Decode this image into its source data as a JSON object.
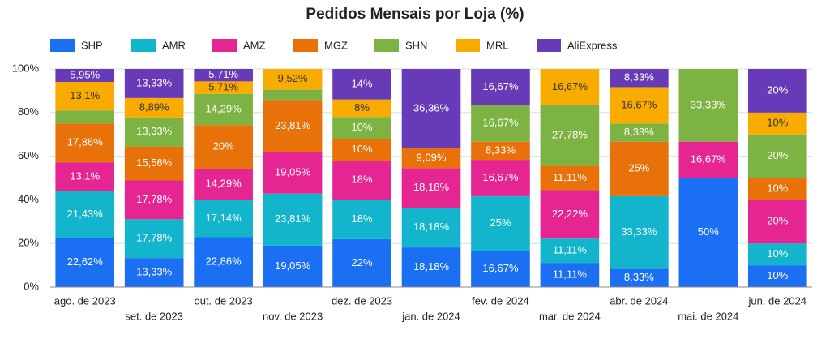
{
  "chart_data": {
    "type": "stacked_bar_100",
    "title": "Pedidos Mensais por Loja (%)",
    "categories": [
      "ago. de 2023",
      "set. de 2023",
      "out. de 2023",
      "nov. de 2023",
      "dez. de 2023",
      "jan. de 2024",
      "fev. de 2024",
      "mar. de 2024",
      "abr. de 2024",
      "mai. de 2024",
      "jun. de 2024"
    ],
    "series": [
      {
        "name": "SHP",
        "color": "#1a6ff2",
        "values": [
          22.62,
          13.33,
          22.86,
          19.05,
          22,
          18.18,
          16.67,
          11.11,
          8.33,
          50,
          10
        ],
        "value_labels": [
          "22,62%",
          "13,33%",
          "22,86%",
          "19,05%",
          "22%",
          "18,18%",
          "16,67%",
          "11,11%",
          "8,33%",
          "50%",
          "10%"
        ]
      },
      {
        "name": "AMR",
        "color": "#12b5cb",
        "values": [
          21.43,
          17.78,
          17.14,
          23.81,
          18,
          18.18,
          25,
          11.11,
          33.33,
          0,
          10
        ],
        "value_labels": [
          "21,43%",
          "17,78%",
          "17,14%",
          "23,81%",
          "18%",
          "18,18%",
          "25%",
          "11,11%",
          "33,33%",
          null,
          "10%"
        ]
      },
      {
        "name": "AMZ",
        "color": "#e52592",
        "values": [
          13.1,
          17.78,
          14.29,
          19.05,
          18,
          18.18,
          16.67,
          22.22,
          0,
          16.67,
          20
        ],
        "value_labels": [
          "13,1%",
          "17,78%",
          "14,29%",
          "19,05%",
          "18%",
          "18,18%",
          "16,67%",
          "22,22%",
          null,
          "16,67%",
          "20%"
        ]
      },
      {
        "name": "MGZ",
        "color": "#e8710a",
        "values": [
          17.86,
          15.56,
          20,
          23.81,
          10,
          9.09,
          8.33,
          11.11,
          25,
          0,
          10
        ],
        "value_labels": [
          "17,86%",
          "15,56%",
          "20%",
          "23,81%",
          "10%",
          "9,09%",
          "8,33%",
          "11,11%",
          "25%",
          null,
          "10%"
        ]
      },
      {
        "name": "SHN",
        "color": "#7cb342",
        "values": [
          5.95,
          13.33,
          14.29,
          4.76,
          10,
          0,
          16.67,
          27.78,
          8.33,
          33.33,
          20
        ],
        "value_labels": [
          null,
          "13,33%",
          "14,29%",
          null,
          "10%",
          null,
          "16,67%",
          "27,78%",
          "8,33%",
          "33,33%",
          "20%"
        ]
      },
      {
        "name": "MRL",
        "color": "#f9ab00",
        "values": [
          13.1,
          8.89,
          5.71,
          9.52,
          8,
          0,
          0,
          16.67,
          16.67,
          0,
          10
        ],
        "value_labels": [
          "13,1%",
          "8,89%",
          "5,71%",
          "9,52%",
          "8%",
          null,
          null,
          "16,67%",
          "16,67%",
          null,
          "10%"
        ]
      },
      {
        "name": "AliExpress",
        "color": "#673ab7",
        "values": [
          5.95,
          13.33,
          5.71,
          0,
          14,
          36.36,
          16.67,
          0,
          8.33,
          0,
          20
        ],
        "value_labels": [
          "5,95%",
          "13,33%",
          "5,71%",
          null,
          "14%",
          "36,36%",
          "16,67%",
          null,
          "8,33%",
          null,
          "20%"
        ]
      }
    ],
    "ylim": [
      0,
      100
    ],
    "yticks": [
      {
        "value": 0,
        "label": "0%"
      },
      {
        "value": 20,
        "label": "20%"
      },
      {
        "value": 40,
        "label": "40%"
      },
      {
        "value": 60,
        "label": "60%"
      },
      {
        "value": 80,
        "label": "80%"
      },
      {
        "value": 100,
        "label": "100%"
      }
    ],
    "grid": true
  }
}
